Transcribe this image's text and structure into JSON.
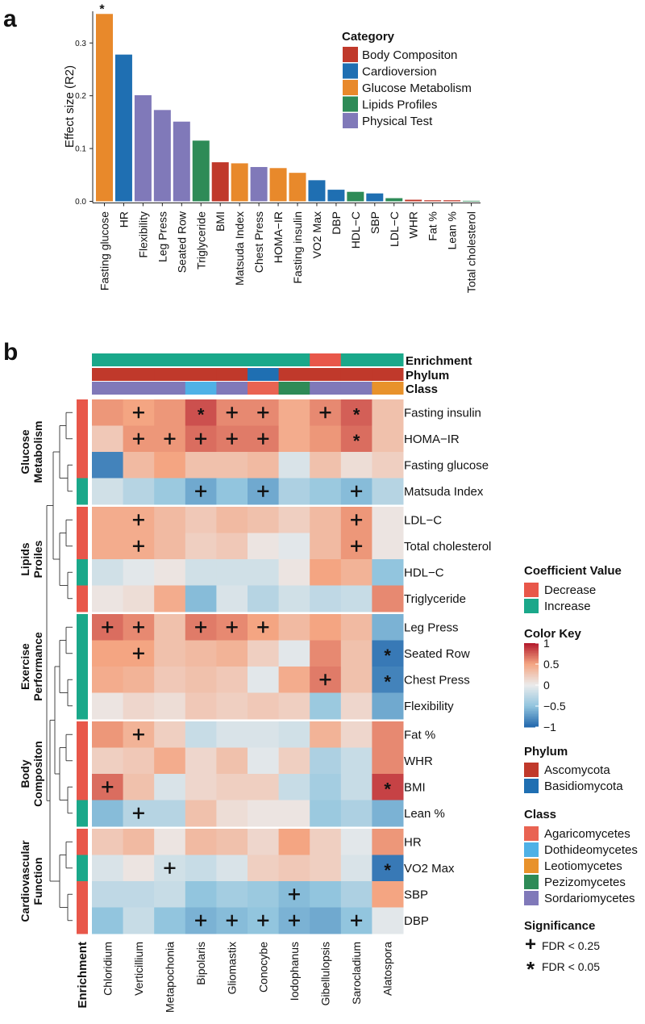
{
  "chart_data": [
    {
      "panel_label": "a",
      "type": "bar",
      "title": "",
      "xlabel": "",
      "ylabel": "Effect size (R2)",
      "ylim": [
        0,
        0.36
      ],
      "yticks": [
        0.0,
        0.1,
        0.2,
        0.3
      ],
      "ytick_labels": [
        "0.0",
        "0.1",
        "0.2",
        "0.3"
      ],
      "legend_title": "Category",
      "categories_legend": [
        {
          "name": "Body Compositon",
          "color": "#c0392b"
        },
        {
          "name": "Cardioversion",
          "color": "#1f6fb2"
        },
        {
          "name": "Glucose Metabolism",
          "color": "#e8892b"
        },
        {
          "name": "Lipids Profiles",
          "color": "#2e8b57"
        },
        {
          "name": "Physical Test",
          "color": "#8079b9"
        }
      ],
      "bars": [
        {
          "label": "Fasting glucose",
          "value": 0.355,
          "category": "Glucose Metabolism",
          "annotation": "*"
        },
        {
          "label": "HR",
          "value": 0.278,
          "category": "Cardioversion",
          "annotation": ""
        },
        {
          "label": "Flexibility",
          "value": 0.201,
          "category": "Physical Test",
          "annotation": ""
        },
        {
          "label": "Leg Press",
          "value": 0.173,
          "category": "Physical Test",
          "annotation": ""
        },
        {
          "label": "Seated Row",
          "value": 0.151,
          "category": "Physical Test",
          "annotation": ""
        },
        {
          "label": "Triglyceride",
          "value": 0.115,
          "category": "Lipids Profiles",
          "annotation": ""
        },
        {
          "label": "BMI",
          "value": 0.074,
          "category": "Body Compositon",
          "annotation": ""
        },
        {
          "label": "Matsuda Index",
          "value": 0.072,
          "category": "Glucose Metabolism",
          "annotation": ""
        },
        {
          "label": "Chest Press",
          "value": 0.065,
          "category": "Physical Test",
          "annotation": ""
        },
        {
          "label": "HOMA−IR",
          "value": 0.063,
          "category": "Glucose Metabolism",
          "annotation": ""
        },
        {
          "label": "Fasting insulin",
          "value": 0.054,
          "category": "Glucose Metabolism",
          "annotation": ""
        },
        {
          "label": "VO2 Max",
          "value": 0.04,
          "category": "Cardioversion",
          "annotation": ""
        },
        {
          "label": "DBP",
          "value": 0.022,
          "category": "Cardioversion",
          "annotation": ""
        },
        {
          "label": "HDL−C",
          "value": 0.018,
          "category": "Lipids Profiles",
          "annotation": ""
        },
        {
          "label": "SBP",
          "value": 0.015,
          "category": "Cardioversion",
          "annotation": ""
        },
        {
          "label": "LDL−C",
          "value": 0.006,
          "category": "Lipids Profiles",
          "annotation": ""
        },
        {
          "label": "WHR",
          "value": 0.003,
          "category": "Body Compositon",
          "annotation": ""
        },
        {
          "label": "Fat %",
          "value": 0.002,
          "category": "Body Compositon",
          "annotation": ""
        },
        {
          "label": "Lean %",
          "value": 0.002,
          "category": "Body Compositon",
          "annotation": ""
        },
        {
          "label": "Total cholesterol",
          "value": 0.001,
          "category": "Lipids Profiles",
          "annotation": ""
        }
      ]
    },
    {
      "panel_label": "b",
      "type": "heatmap",
      "value_range": [
        -1,
        1
      ],
      "columns": [
        "Chloridium",
        "Verticillium",
        "Metapochonia",
        "Bipolaris",
        "Gliomastix",
        "Conocybe",
        "Iodophanus",
        "Gibellulopsis",
        "Sarocladium",
        "Alatospora"
      ],
      "column_annotations": {
        "labels": [
          "Enrichment",
          "Phylum",
          "Class"
        ],
        "Enrichment": [
          "Increase",
          "Increase",
          "Increase",
          "Increase",
          "Increase",
          "Increase",
          "Increase",
          "Decrease",
          "Increase",
          "Increase"
        ],
        "Phylum": [
          "Ascomycota",
          "Ascomycota",
          "Ascomycota",
          "Ascomycota",
          "Ascomycota",
          "Basidiomycota",
          "Ascomycota",
          "Ascomycota",
          "Ascomycota",
          "Ascomycota"
        ],
        "Class": [
          "Sordariomycetes",
          "Sordariomycetes",
          "Sordariomycetes",
          "Dothideomycetes",
          "Sordariomycetes",
          "Agaricomycetes",
          "Pezizomycetes",
          "Sordariomycetes",
          "Sordariomycetes",
          "Leotiomycetes"
        ]
      },
      "row_annotation_label": "Enrichment",
      "groups": [
        {
          "name_lines": [
            "Glucose",
            "Metabolism"
          ],
          "rows": [
            0,
            1,
            2,
            3
          ]
        },
        {
          "name_lines": [
            "Lipids",
            "Proiles"
          ],
          "rows": [
            4,
            5,
            6,
            7
          ]
        },
        {
          "name_lines": [
            "Exercise",
            "Performance"
          ],
          "rows": [
            8,
            9,
            10,
            11
          ]
        },
        {
          "name_lines": [
            "Body",
            "Compositon"
          ],
          "rows": [
            12,
            13,
            14,
            15
          ]
        },
        {
          "name_lines": [
            "Cardiovascular",
            "Function"
          ],
          "rows": [
            16,
            17,
            18,
            19
          ]
        }
      ],
      "rows": [
        {
          "label": "Fasting insulin",
          "enrichment": "Decrease",
          "values": [
            0.55,
            0.5,
            0.55,
            0.8,
            0.6,
            0.6,
            0.45,
            0.6,
            0.75,
            0.3
          ],
          "sig": [
            "",
            "+",
            "",
            "*",
            "+",
            "+",
            "",
            "+",
            "*",
            ""
          ]
        },
        {
          "label": "HOMA−IR",
          "enrichment": "Decrease",
          "values": [
            0.25,
            0.55,
            0.55,
            0.7,
            0.65,
            0.65,
            0.45,
            0.55,
            0.7,
            0.3
          ],
          "sig": [
            "",
            "+",
            "+",
            "+",
            "+",
            "+",
            "",
            "",
            "*",
            ""
          ]
        },
        {
          "label": "Fasting glucose",
          "enrichment": "Decrease",
          "values": [
            -0.85,
            0.35,
            0.5,
            0.3,
            0.3,
            0.35,
            -0.1,
            0.3,
            0.1,
            0.2
          ]
        },
        {
          "label": "Matsuda Index",
          "enrichment": "Increase",
          "values": [
            -0.15,
            -0.3,
            -0.45,
            -0.65,
            -0.5,
            -0.65,
            -0.35,
            -0.45,
            -0.55,
            -0.3
          ],
          "sig": [
            "",
            "",
            "",
            "+",
            "",
            "+",
            "",
            "",
            "+",
            ""
          ]
        },
        {
          "label": "LDL−C",
          "enrichment": "Decrease",
          "values": [
            0.45,
            0.45,
            0.35,
            0.25,
            0.35,
            0.3,
            0.2,
            0.35,
            0.55,
            0.05
          ],
          "sig": [
            "",
            "+",
            "",
            "",
            "",
            "",
            "",
            "",
            "+",
            ""
          ]
        },
        {
          "label": "Total cholesterol",
          "enrichment": "Decrease",
          "values": [
            0.45,
            0.45,
            0.35,
            0.2,
            0.25,
            0.05,
            -0.05,
            0.35,
            0.55,
            0.05
          ],
          "sig": [
            "",
            "+",
            "",
            "",
            "",
            "",
            "",
            "",
            "+",
            ""
          ]
        },
        {
          "label": "HDL−C",
          "enrichment": "Increase",
          "values": [
            -0.15,
            -0.05,
            0.05,
            -0.15,
            -0.15,
            -0.15,
            0.05,
            0.5,
            0.4,
            -0.5
          ]
        },
        {
          "label": "Triglyceride",
          "enrichment": "Decrease",
          "values": [
            0.05,
            0.1,
            0.45,
            -0.55,
            -0.1,
            -0.3,
            -0.15,
            -0.25,
            -0.2,
            0.6
          ]
        },
        {
          "label": "Leg Press",
          "enrichment": "Increase",
          "values": [
            0.7,
            0.6,
            0.3,
            0.65,
            0.6,
            0.5,
            0.35,
            0.5,
            0.35,
            -0.6
          ],
          "sig": [
            "+",
            "+",
            "",
            "+",
            "+",
            "+",
            "",
            "",
            "",
            ""
          ]
        },
        {
          "label": "Seated Row",
          "enrichment": "Increase",
          "values": [
            0.5,
            0.5,
            0.3,
            0.35,
            0.4,
            0.2,
            -0.05,
            0.6,
            0.3,
            -0.9
          ],
          "sig": [
            "",
            "+",
            "",
            "",
            "",
            "",
            "",
            "",
            "",
            "*"
          ]
        },
        {
          "label": "Chest Press",
          "enrichment": "Increase",
          "values": [
            0.45,
            0.4,
            0.25,
            0.3,
            0.25,
            -0.05,
            0.45,
            0.65,
            0.3,
            -0.85
          ],
          "sig": [
            "",
            "",
            "",
            "",
            "",
            "",
            "",
            "+",
            "",
            "*"
          ]
        },
        {
          "label": "Flexibility",
          "enrichment": "Increase",
          "values": [
            0.05,
            0.15,
            0.1,
            0.25,
            0.2,
            0.25,
            0.2,
            -0.45,
            0.15,
            -0.65
          ]
        },
        {
          "label": "Fat %",
          "enrichment": "Decrease",
          "values": [
            0.55,
            0.4,
            0.2,
            -0.2,
            -0.1,
            -0.1,
            -0.15,
            0.4,
            0.15,
            0.6
          ],
          "sig": [
            "",
            "+",
            "",
            "",
            "",
            "",
            "",
            "",
            "",
            ""
          ]
        },
        {
          "label": "WHR",
          "enrichment": "Decrease",
          "values": [
            0.2,
            0.25,
            0.45,
            0.15,
            0.3,
            -0.05,
            0.2,
            -0.35,
            -0.2,
            0.6
          ]
        },
        {
          "label": "BMI",
          "enrichment": "Decrease",
          "values": [
            0.7,
            0.3,
            -0.1,
            0.15,
            0.2,
            0.2,
            -0.2,
            -0.4,
            -0.2,
            0.85
          ],
          "sig": [
            "+",
            "",
            "",
            "",
            "",
            "",
            "",
            "",
            "",
            "*"
          ]
        },
        {
          "label": "Lean %",
          "enrichment": "Increase",
          "values": [
            -0.55,
            -0.3,
            -0.3,
            0.3,
            0.1,
            0.05,
            0.05,
            -0.45,
            -0.35,
            -0.6
          ],
          "sig": [
            "",
            "+",
            "",
            "",
            "",
            "",
            "",
            "",
            "",
            ""
          ]
        },
        {
          "label": "HR",
          "enrichment": "Decrease",
          "values": [
            0.25,
            0.35,
            0.05,
            0.35,
            0.3,
            0.15,
            0.5,
            0.2,
            -0.05,
            0.55
          ]
        },
        {
          "label": "VO2 Max",
          "enrichment": "Increase",
          "values": [
            -0.1,
            0.05,
            -0.15,
            -0.2,
            -0.1,
            0.2,
            0.25,
            0.2,
            -0.1,
            -0.9
          ],
          "sig": [
            "",
            "",
            "+",
            "",
            "",
            "",
            "",
            "",
            "",
            "*"
          ]
        },
        {
          "label": "SBP",
          "enrichment": "Decrease",
          "values": [
            -0.25,
            -0.25,
            -0.2,
            -0.5,
            -0.4,
            -0.45,
            -0.55,
            -0.5,
            -0.35,
            0.5
          ],
          "sig": [
            "",
            "",
            "",
            "",
            "",
            "",
            "+",
            "",
            "",
            ""
          ]
        },
        {
          "label": "DBP",
          "enrichment": "Decrease",
          "values": [
            -0.5,
            -0.2,
            -0.5,
            -0.6,
            -0.55,
            -0.5,
            -0.6,
            -0.65,
            -0.5,
            -0.05
          ],
          "sig": [
            "",
            "",
            "",
            "+",
            "+",
            "+",
            "+",
            "",
            "+",
            ""
          ]
        }
      ],
      "legends": {
        "coefficient": {
          "title": "Coefficient Value",
          "items": [
            {
              "name": "Decrease",
              "color": "#e8574a"
            },
            {
              "name": "Increase",
              "color": "#1aa88a"
            }
          ]
        },
        "color_key": {
          "title": "Color Key",
          "tick_values": [
            1,
            0.5,
            0,
            -0.5,
            -1
          ],
          "tick_labels": [
            "1",
            "0.5",
            "0",
            "−0.5",
            "−1"
          ]
        },
        "phylum": {
          "title": "Phylum",
          "items": [
            {
              "name": "Ascomycota",
              "color": "#c0392b"
            },
            {
              "name": "Basidiomycota",
              "color": "#1f6fb2"
            }
          ]
        },
        "class": {
          "title": "Class",
          "items": [
            {
              "name": "Agaricomycetes",
              "color": "#e96352"
            },
            {
              "name": "Dothideomycetes",
              "color": "#4fb1e6"
            },
            {
              "name": "Leotiomycetes",
              "color": "#e8922b"
            },
            {
              "name": "Pezizomycetes",
              "color": "#2e8b57"
            },
            {
              "name": "Sordariomycetes",
              "color": "#8079b9"
            }
          ]
        },
        "significance": {
          "title": "Significance",
          "items": [
            {
              "symbol": "+",
              "label": "FDR < 0.25"
            },
            {
              "symbol": "*",
              "label": "FDR < 0.05"
            }
          ]
        }
      }
    }
  ]
}
